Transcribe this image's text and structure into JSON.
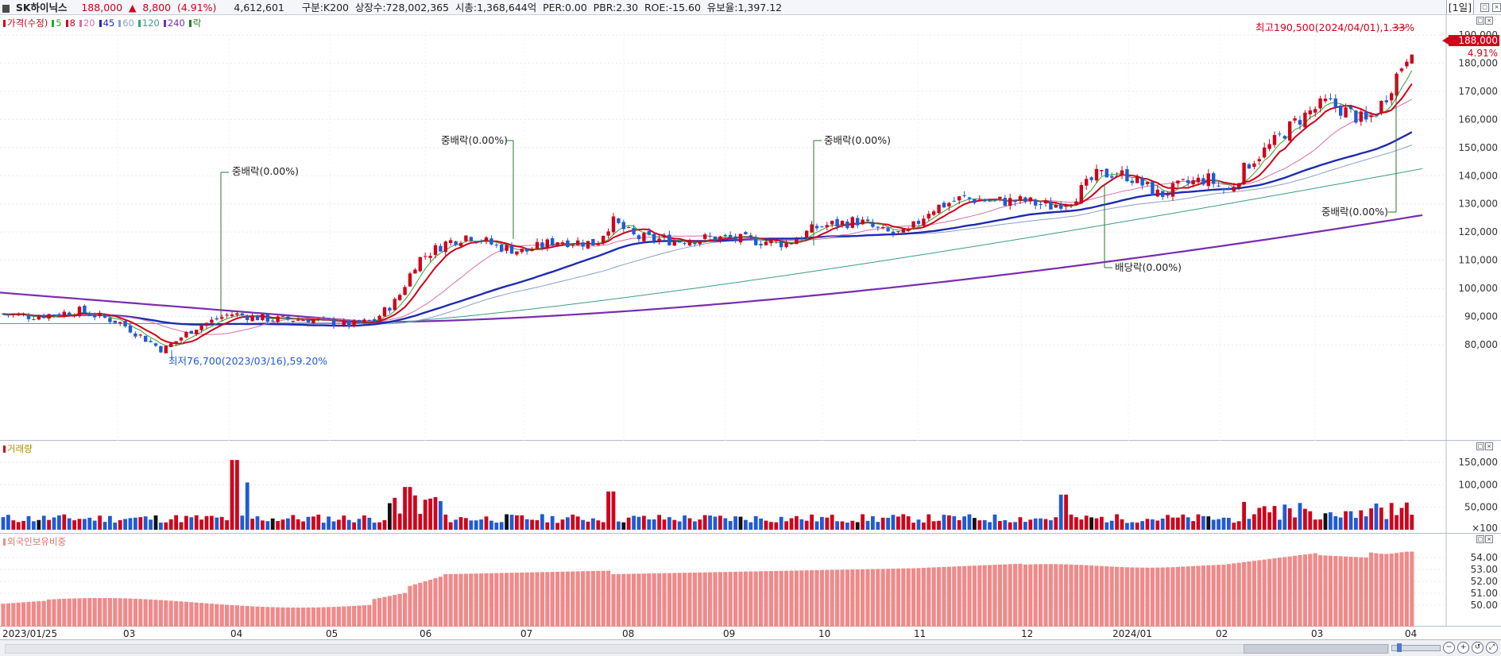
{
  "header": {
    "name": "SK하이닉스",
    "price": "188,000",
    "change_arrow": "▲",
    "change": "8,800",
    "change_pct": "(4.91%)",
    "volume": "4,612,601",
    "category": "구분:K200",
    "listed_shares": "상장수:728,002,365",
    "market_cap": "시총:1,368,644억",
    "per": "PER:0.00",
    "pbr": "PBR:2.30",
    "roe": "ROE:-15.60",
    "float_ratio": "유보율:1,397.12",
    "period": "[1일]"
  },
  "price_pane": {
    "legend": [
      {
        "label": "가격(수정)",
        "color": "#d0021b"
      },
      {
        "label": "5",
        "color": "#2ea42e"
      },
      {
        "label": "8",
        "color": "#d0021b"
      },
      {
        "label": "20",
        "color": "#d96fa6"
      },
      {
        "label": "45",
        "color": "#1f2bb0"
      },
      {
        "label": "60",
        "color": "#8aa0c8"
      },
      {
        "label": "120",
        "color": "#3a9e84"
      },
      {
        "label": "240",
        "color": "#7a2db0"
      },
      {
        "label": "락",
        "color": "#2a7a2a"
      }
    ],
    "y_ticks": [
      "190,000",
      "180,000",
      "170,000",
      "160,000",
      "150,000",
      "140,000",
      "130,000",
      "120,000",
      "110,000",
      "100,000",
      "90,000",
      "80,000"
    ],
    "current_price_tag": "188,000",
    "current_pct_tag": "4.91%",
    "annotations": {
      "high": "최고190,500(2024/04/01),1.33%",
      "low": "최저76,700(2023/03/16),59.20%",
      "ex1": "중배락(0.00%)",
      "ex2": "중배락(0.00%)",
      "ex3": "중배락(0.00%)",
      "ex4": "배당락(0.00%)",
      "ex5": "중배락(0.00%)"
    }
  },
  "volume_pane": {
    "legend": "거래량",
    "y_ticks": [
      "150,000",
      "100,000",
      "50,000",
      "×100"
    ]
  },
  "foreign_pane": {
    "legend": "외국인보유비중",
    "y_ticks": [
      "54.00",
      "53.00",
      "52.00",
      "51.00",
      "50.00"
    ]
  },
  "x_axis": {
    "labels": [
      "2023/01/25",
      "03",
      "04",
      "05",
      "06",
      "07",
      "08",
      "09",
      "10",
      "11",
      "12",
      "2024/01",
      "02",
      "03",
      "04"
    ]
  },
  "colors": {
    "up": "#d0021b",
    "down": "#1f5bd6",
    "flat": "#111111",
    "foreign_bar": "#f08a8a"
  }
}
